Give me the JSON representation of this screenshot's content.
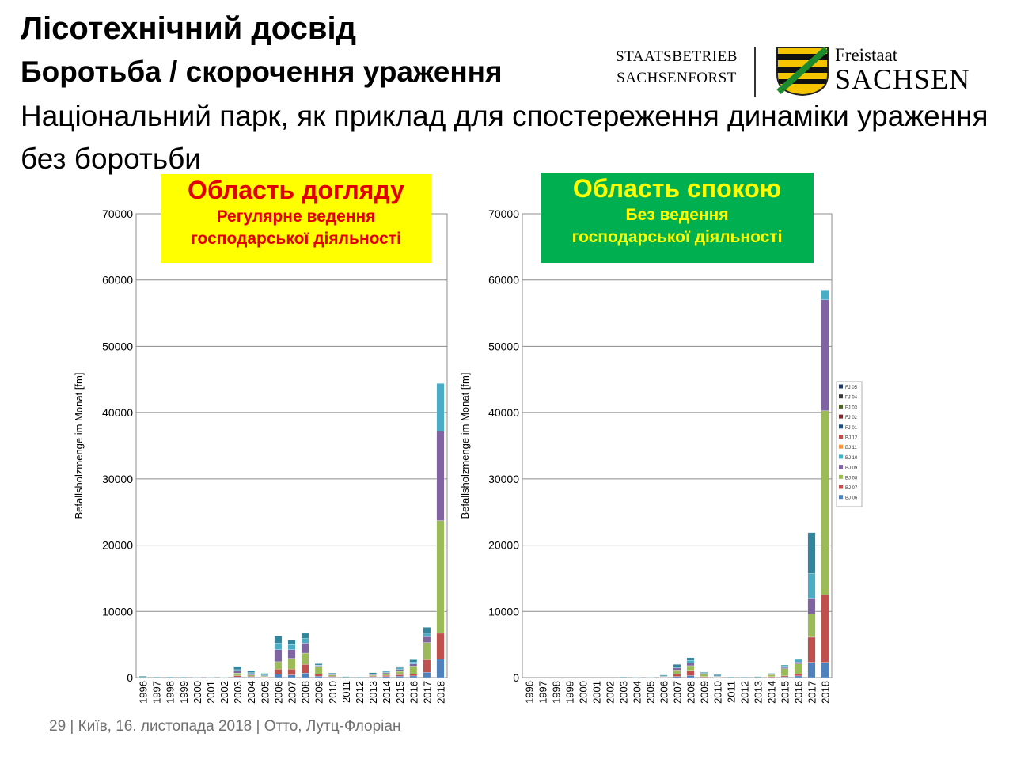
{
  "slide": {
    "title": "Лісотехнічний досвід",
    "subtitle": "Боротьба / скорочення ураження",
    "description": "Національний парк, як приклад для спостереження динаміки ураження без боротьби",
    "footer": "29  | Київ,  16. листопада 2018  |  Отто, Лутц-Флоріан"
  },
  "logo": {
    "left_line1": "STAATSBETRIEB",
    "left_line2": "SACHSENFORST",
    "right_line1": "Freistaat",
    "right_line2": "SACHSEN"
  },
  "boxes": {
    "left": {
      "heading": "Область догляду",
      "line1": "Регулярне ведення",
      "line2": "господарської діяльності",
      "bg": "#ffff00",
      "fg": "#e00000"
    },
    "right": {
      "heading": "Область спокою",
      "line1": "Без ведення",
      "line2": "господарської діяльності",
      "bg": "#00b050",
      "fg": "#ffff00"
    }
  },
  "chart_data": [
    {
      "type": "bar",
      "stacked": true,
      "ylabel": "Befallsholzmenge im Monat [fm]",
      "ylim": [
        0,
        70000
      ],
      "yticks": [
        0,
        10000,
        20000,
        30000,
        40000,
        50000,
        60000,
        70000
      ],
      "ytick_labels": [
        "0",
        "10000",
        "20000",
        "30000",
        "40000",
        "50000",
        "60000",
        "70000"
      ],
      "grid": true,
      "categories": [
        "1996",
        "1997",
        "1998",
        "1999",
        "2000",
        "2001",
        "2002",
        "2003",
        "2004",
        "2005",
        "2006",
        "2007",
        "2008",
        "2009",
        "2010",
        "2011",
        "2012",
        "2013",
        "2014",
        "2015",
        "2016",
        "2017",
        "2018"
      ],
      "series": [
        {
          "color": "#4f81bd",
          "values": [
            0,
            0,
            0,
            0,
            0,
            0,
            0,
            100,
            100,
            50,
            500,
            400,
            700,
            200,
            100,
            0,
            0,
            100,
            150,
            200,
            250,
            800,
            2800
          ]
        },
        {
          "color": "#c0504d",
          "values": [
            0,
            0,
            0,
            0,
            0,
            0,
            0,
            200,
            100,
            50,
            800,
            900,
            1300,
            300,
            100,
            0,
            0,
            100,
            200,
            250,
            300,
            1900,
            3900
          ]
        },
        {
          "color": "#9bbb59",
          "values": [
            50,
            0,
            0,
            0,
            0,
            0,
            0,
            400,
            200,
            100,
            1100,
            1600,
            1700,
            1200,
            200,
            50,
            0,
            150,
            250,
            500,
            1200,
            2600,
            17000
          ]
        },
        {
          "color": "#8064a2",
          "values": [
            0,
            0,
            0,
            0,
            0,
            0,
            0,
            300,
            200,
            100,
            1800,
            1300,
            1500,
            100,
            100,
            0,
            0,
            100,
            150,
            300,
            300,
            900,
            13500
          ]
        },
        {
          "color": "#4bacc6",
          "values": [
            0,
            0,
            0,
            0,
            0,
            0,
            0,
            200,
            150,
            100,
            1000,
            800,
            700,
            100,
            50,
            0,
            0,
            100,
            100,
            200,
            300,
            500,
            7200
          ]
        },
        {
          "color": "#31859c",
          "values": [
            150,
            100,
            100,
            80,
            50,
            50,
            40,
            500,
            300,
            250,
            1100,
            700,
            800,
            200,
            150,
            100,
            80,
            200,
            150,
            250,
            350,
            900,
            0
          ]
        }
      ]
    },
    {
      "type": "bar",
      "stacked": true,
      "ylabel": "Befallsholzmenge im Monat [fm]",
      "ylim": [
        0,
        70000
      ],
      "yticks": [
        0,
        10000,
        20000,
        30000,
        40000,
        50000,
        60000,
        70000
      ],
      "ytick_labels": [
        "0",
        "10000",
        "20000",
        "30000",
        "40000",
        "50000",
        "60000",
        "70000"
      ],
      "grid": true,
      "categories": [
        "1996",
        "1997",
        "1998",
        "1999",
        "2000",
        "2001",
        "2002",
        "2003",
        "2004",
        "2005",
        "2006",
        "2007",
        "2008",
        "2009",
        "2010",
        "2011",
        "2012",
        "2013",
        "2014",
        "2015",
        "2016",
        "2017",
        "2018"
      ],
      "series": [
        {
          "color": "#4f81bd",
          "values": [
            0,
            0,
            0,
            0,
            0,
            0,
            0,
            0,
            0,
            0,
            50,
            150,
            300,
            50,
            50,
            0,
            0,
            0,
            50,
            100,
            250,
            2300,
            2300
          ]
        },
        {
          "color": "#c0504d",
          "values": [
            0,
            0,
            0,
            0,
            0,
            0,
            0,
            0,
            0,
            0,
            50,
            400,
            800,
            100,
            50,
            0,
            0,
            0,
            100,
            150,
            300,
            3800,
            10200
          ]
        },
        {
          "color": "#9bbb59",
          "values": [
            0,
            0,
            0,
            0,
            0,
            0,
            0,
            0,
            0,
            0,
            50,
            600,
            700,
            400,
            50,
            0,
            0,
            50,
            300,
            1100,
            1500,
            3500,
            27800
          ]
        },
        {
          "color": "#8064a2",
          "values": [
            0,
            0,
            0,
            0,
            0,
            0,
            0,
            0,
            0,
            0,
            50,
            300,
            400,
            100,
            50,
            0,
            0,
            0,
            50,
            200,
            300,
            2300,
            16700
          ]
        },
        {
          "color": "#4bacc6",
          "values": [
            0,
            0,
            0,
            0,
            0,
            0,
            0,
            0,
            0,
            0,
            50,
            200,
            400,
            100,
            50,
            0,
            0,
            0,
            50,
            200,
            300,
            3800,
            1500
          ]
        },
        {
          "color": "#31859c",
          "values": [
            0,
            0,
            0,
            0,
            0,
            0,
            0,
            100,
            50,
            50,
            150,
            350,
            400,
            100,
            200,
            100,
            80,
            100,
            100,
            150,
            200,
            6200,
            0
          ]
        }
      ],
      "legend": {
        "placement": "right",
        "entries": [
          {
            "label": "FJ 05",
            "color": "#1f3864"
          },
          {
            "label": "FJ 04",
            "color": "#3a3a3a"
          },
          {
            "label": "FJ 03",
            "color": "#4f6228"
          },
          {
            "label": "FJ 02",
            "color": "#7b2c2c"
          },
          {
            "label": "FJ 01",
            "color": "#1f4e79"
          },
          {
            "label": "BJ 12",
            "color": "#c0504d"
          },
          {
            "label": "BJ 11",
            "color": "#f79646"
          },
          {
            "label": "BJ 10",
            "color": "#4bacc6"
          },
          {
            "label": "BJ 09",
            "color": "#8064a2"
          },
          {
            "label": "BJ 08",
            "color": "#9bbb59"
          },
          {
            "label": "BJ 07",
            "color": "#c0504d"
          },
          {
            "label": "BJ 06",
            "color": "#4f81bd"
          }
        ]
      }
    }
  ]
}
